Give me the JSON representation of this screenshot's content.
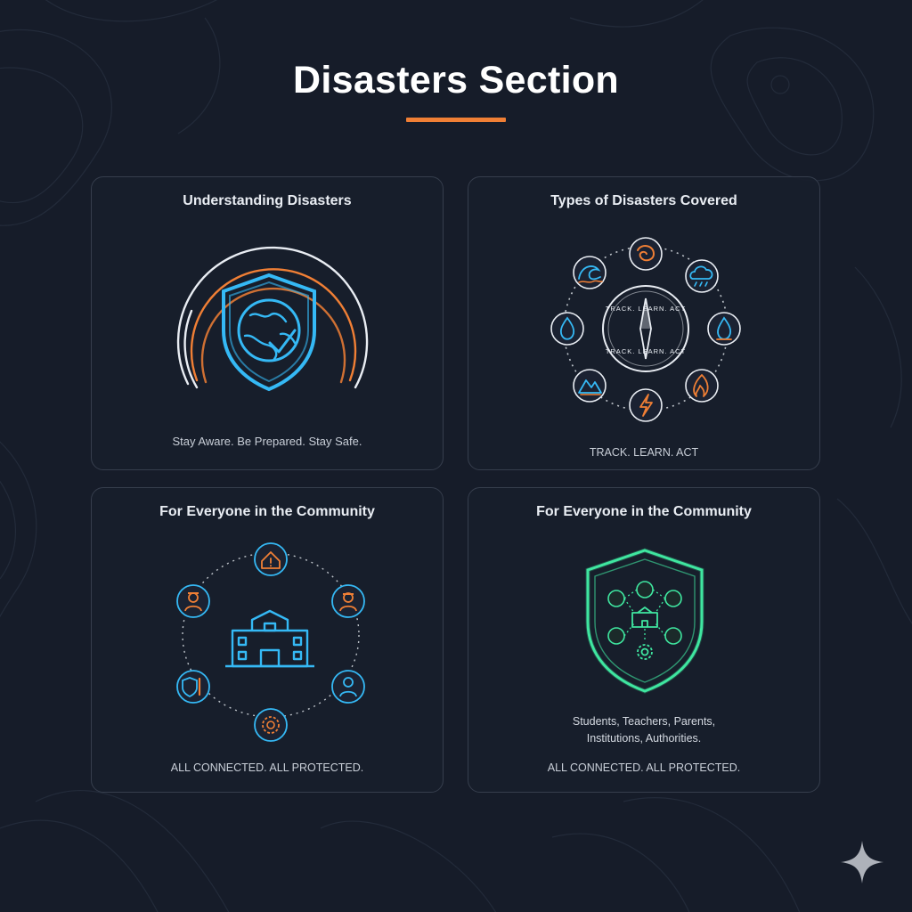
{
  "page": {
    "title": "Disasters Section",
    "accent_color": "#f07f35"
  },
  "cards": [
    {
      "title": "Understanding Disasters",
      "illustration": "globe-shield-icon",
      "caption": "Stay Aware. Be Prepared. Stay Safe."
    },
    {
      "title": "Types of Disasters Covered",
      "illustration": "disaster-types-ring",
      "hub_text_top": "TRACK. LEARN. ACT",
      "hub_text_bottom": "TRACK. LEARN. ACT",
      "icons": [
        "wildfire-icon",
        "cyclone-icon",
        "flame-icon",
        "lightning-icon",
        "landslide-icon",
        "flood-drop-icon",
        "tsunami-wave-icon",
        "storm-cloud-icon"
      ],
      "caption": "TRACK. LEARN. ACT"
    },
    {
      "title": "For Everyone in the Community",
      "illustration": "community-network",
      "icons": [
        "school-building-icon",
        "alert-house-icon",
        "worker-icon",
        "officer-icon",
        "shield-badge-icon",
        "gear-shield-icon",
        "person-icon"
      ],
      "caption": "ALL CONNECTED. ALL PROTECTED."
    },
    {
      "title": "For Everyone in the Community",
      "illustration": "community-shield",
      "subtext_line1": "Students, Teachers, Parents,",
      "subtext_line2": "Institutions, Authorities.",
      "caption": "ALL CONNECTED. ALL PROTECTED."
    }
  ]
}
